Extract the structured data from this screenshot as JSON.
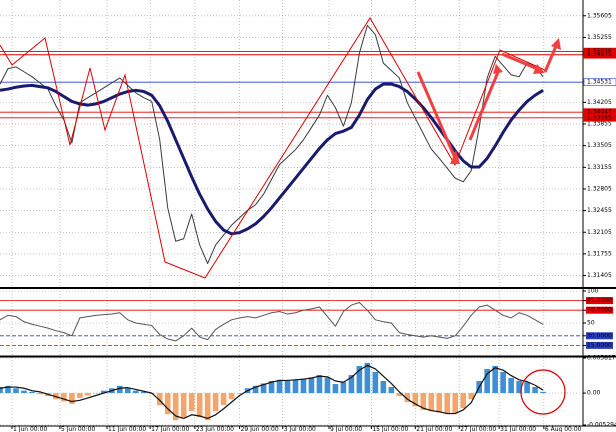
{
  "chart_data": [
    {
      "type": "line",
      "xlim": [
        0,
        73
      ],
      "xticks": [
        {
          "value": 1.5,
          "label": "1 Jun 00:00"
        },
        {
          "value": 7.5,
          "label": "5 Jun 00:00"
        },
        {
          "value": 13.4,
          "label": "11 Jun 00:00"
        },
        {
          "value": 18.8,
          "label": "17 Jun 00:00"
        },
        {
          "value": 24.4,
          "label": "23 Jun 00:00"
        },
        {
          "value": 30,
          "label": "29 Jun 00:00"
        },
        {
          "value": 35.4,
          "label": "3 Jul 00:00"
        },
        {
          "value": 41.2,
          "label": "9 Jul 00:00"
        },
        {
          "value": 46.5,
          "label": "15 Jul 00:00"
        },
        {
          "value": 52,
          "label": "21 Jul 00:00"
        },
        {
          "value": 57.5,
          "label": "27 Jul 00:00"
        },
        {
          "value": 62.5,
          "label": "31 Jul 00:00"
        },
        {
          "value": 68.1,
          "label": "6 Aug 00:00"
        }
      ],
      "ylim": [
        1.3122,
        1.3586
      ],
      "yticks": [
        1.35605,
        1.35255,
        1.34205,
        1.33855,
        1.33505,
        1.33155,
        1.32805,
        1.32455,
        1.32105,
        1.31755,
        1.31405
      ],
      "grid": true,
      "hlines": [
        {
          "value": 1.35026,
          "color": "#e00000"
        },
        {
          "value": 1.34975,
          "color": "#e00000"
        },
        {
          "value": 1.34531,
          "color": "#2a3fbf"
        },
        {
          "value": 1.34047,
          "color": "#e00000"
        },
        {
          "value": 1.33955,
          "color": "#e00000"
        }
      ],
      "series": [
        {
          "color": "#3a3a3a",
          "width": 1,
          "values": [
            1.345,
            1.3475,
            1.3478,
            1.347,
            1.3462,
            1.3452,
            1.3442,
            1.3415,
            1.3392,
            1.3355,
            1.342,
            1.3428,
            1.3436,
            1.3444,
            1.3452,
            1.346,
            1.3448,
            1.3436,
            1.3428,
            1.3422,
            1.336,
            1.325,
            1.3196,
            1.32,
            1.324,
            1.319,
            1.316,
            1.319,
            1.3206,
            1.3222,
            1.3234,
            1.3246,
            1.3255,
            1.3272,
            1.3296,
            1.332,
            1.3332,
            1.3344,
            1.336,
            1.338,
            1.34,
            1.3432,
            1.3412,
            1.3382,
            1.342,
            1.35,
            1.3545,
            1.353,
            1.3484,
            1.3472,
            1.346,
            1.342,
            1.3395,
            1.337,
            1.3345,
            1.333,
            1.3314,
            1.3298,
            1.3292,
            1.331,
            1.338,
            1.346,
            1.3495,
            1.348,
            1.3465,
            1.3462,
            1.3484,
            1.3478,
            1.3462
          ]
        },
        {
          "color": "#1a1a6e",
          "width": 3,
          "values": [
            1.344,
            1.3442,
            1.3445,
            1.3447,
            1.3448,
            1.3446,
            1.3444,
            1.3438,
            1.343,
            1.3422,
            1.3418,
            1.3416,
            1.3418,
            1.3422,
            1.3428,
            1.3434,
            1.3438,
            1.344,
            1.3438,
            1.3432,
            1.3415,
            1.339,
            1.336,
            1.333,
            1.33,
            1.3272,
            1.3248,
            1.3228,
            1.3214,
            1.3208,
            1.321,
            1.3216,
            1.3224,
            1.3236,
            1.325,
            1.3266,
            1.3282,
            1.3298,
            1.3314,
            1.333,
            1.3346,
            1.336,
            1.337,
            1.3374,
            1.338,
            1.34,
            1.3425,
            1.3442,
            1.345,
            1.345,
            1.3446,
            1.3438,
            1.3426,
            1.3412,
            1.3396,
            1.3378,
            1.336,
            1.3342,
            1.3326,
            1.3316,
            1.3316,
            1.333,
            1.335,
            1.3372,
            1.3392,
            1.3408,
            1.3422,
            1.3432,
            1.344
          ]
        }
      ]
    },
    {
      "type": "line",
      "ylim": [
        0,
        100
      ],
      "yticks": [
        100,
        {
          "value": 85,
          "label": "85.0000",
          "color": "#e00000"
        },
        {
          "value": 70,
          "label": "70.0000",
          "color": "#e00000"
        },
        50,
        {
          "value": 30,
          "label": "30.0000",
          "color": "#2a3fbf"
        },
        {
          "value": 15,
          "label": "15.0000",
          "color": "#2a3fbf"
        }
      ],
      "series": [
        {
          "color": "#555555",
          "width": 1,
          "values": [
            55,
            62,
            60,
            52,
            48,
            45,
            42,
            38,
            35,
            30,
            58,
            60,
            62,
            63,
            64,
            66,
            55,
            50,
            48,
            46,
            32,
            25,
            22,
            30,
            42,
            28,
            24,
            40,
            48,
            55,
            58,
            60,
            58,
            62,
            66,
            68,
            64,
            66,
            70,
            72,
            75,
            60,
            45,
            68,
            78,
            82,
            70,
            55,
            52,
            50,
            35,
            32,
            30,
            28,
            30,
            28,
            26,
            30,
            45,
            62,
            75,
            78,
            70,
            62,
            58,
            66,
            62,
            55,
            48
          ]
        }
      ]
    },
    {
      "type": "bar",
      "ylim": [
        -0.0052944,
        0.0058177
      ],
      "yticks": [
        0.0058177,
        {
          "value": 0,
          "label": "0.00"
        },
        -0.0052944
      ],
      "color": "#3d8fd6",
      "neg_color": "#f5a46a",
      "values": [
        0.001,
        0.0012,
        0.0008,
        0.0004,
        0.0002,
        -0.0002,
        -0.0005,
        -0.001,
        -0.0014,
        -0.0018,
        -0.0008,
        -0.0004,
        0.0,
        0.0004,
        0.0008,
        0.0012,
        0.0008,
        0.0004,
        0.0002,
        -0.0002,
        -0.002,
        -0.0035,
        -0.0045,
        -0.004,
        -0.003,
        -0.004,
        -0.0045,
        -0.003,
        -0.002,
        -0.001,
        0.0,
        0.0008,
        0.0012,
        0.0016,
        0.002,
        0.0022,
        0.002,
        0.0022,
        0.0024,
        0.0026,
        0.003,
        0.0026,
        0.0015,
        0.0018,
        0.003,
        0.0045,
        0.005,
        0.0035,
        0.002,
        0.001,
        -0.0005,
        -0.0015,
        -0.0022,
        -0.0028,
        -0.003,
        -0.0032,
        -0.0035,
        -0.0033,
        -0.0025,
        -0.001,
        0.002,
        0.004,
        0.0045,
        0.0035,
        0.0025,
        0.002,
        0.0018,
        0.001,
        0.0002
      ],
      "series": [
        {
          "color": "#111111",
          "width": 1.2,
          "values": [
            0.0008,
            0.001,
            0.001,
            0.0008,
            0.0004,
            0.0002,
            -0.0002,
            -0.0006,
            -0.001,
            -0.0014,
            -0.0012,
            -0.0008,
            -0.0004,
            0.0,
            0.0004,
            0.0008,
            0.0009,
            0.0006,
            0.0003,
            0.0,
            -0.0012,
            -0.0026,
            -0.0038,
            -0.0042,
            -0.0036,
            -0.0038,
            -0.0042,
            -0.0036,
            -0.0026,
            -0.0015,
            -0.0004,
            0.0004,
            0.001,
            0.0014,
            0.0018,
            0.0021,
            0.0021,
            0.0022,
            0.0023,
            0.0025,
            0.0028,
            0.0027,
            0.002,
            0.0018,
            0.0026,
            0.0038,
            0.0046,
            0.004,
            0.0028,
            0.0016,
            0.0002,
            -0.001,
            -0.0018,
            -0.0025,
            -0.0029,
            -0.0031,
            -0.0034,
            -0.0034,
            -0.0028,
            -0.0016,
            0.001,
            0.0032,
            0.0042,
            0.0038,
            0.0029,
            0.0022,
            0.0019,
            0.0013,
            0.0005
          ]
        }
      ]
    }
  ]
}
